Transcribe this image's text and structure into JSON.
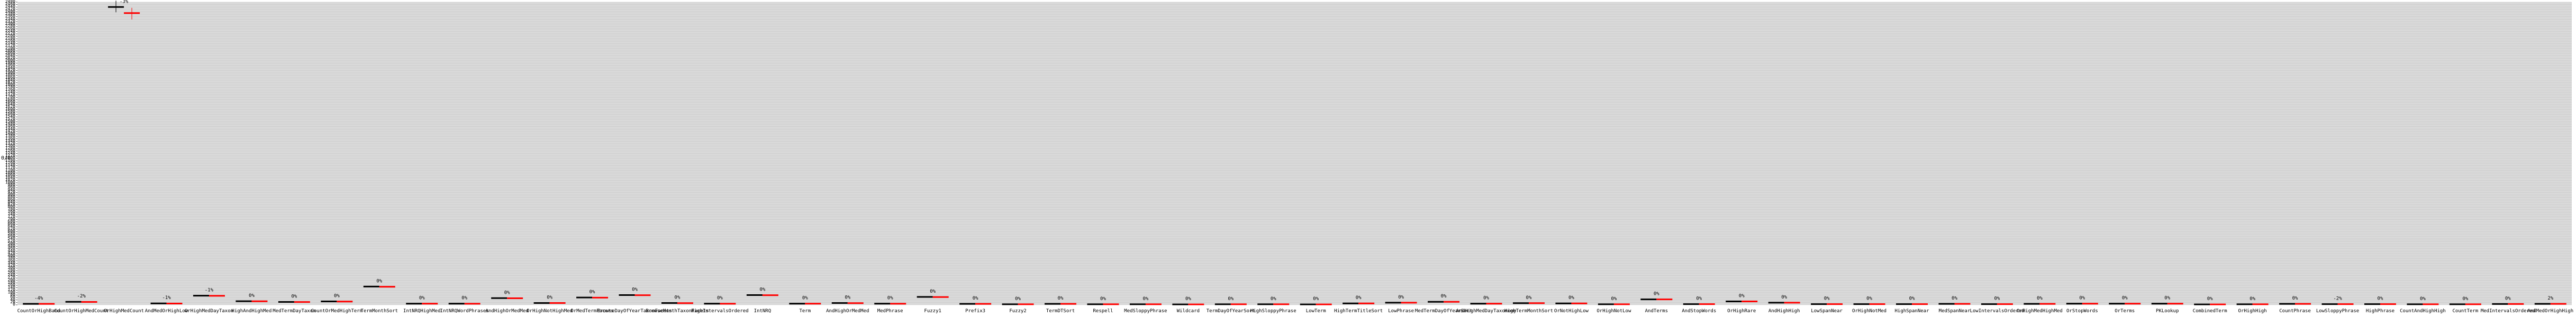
{
  "chart_data": {
    "type": "scatter",
    "ylabel": "0/6",
    "ylim": [
      0,
      2480
    ],
    "grid": true,
    "categories": [
      "CountOrHighBand",
      "CountOrHighMedCount",
      "OrHighMedCount",
      "AndMedOrHighLow",
      "OrHighMedDayTaxon",
      "HighAndHighMed",
      "MedTermDayTaxon",
      "CountOrMedHighTerm",
      "TermMonthSort",
      "IntNRQHighMed",
      "IntNRQWordPhrases",
      "AndHighOrMedMed",
      "OrHighNotHighMed",
      "OrMedTermFacets",
      "BrowseDayOfYearTaxonFacets",
      "BrowseMonthTaxonFacets",
      "HighIntervalsOrdered",
      "IntNRQ",
      "Term",
      "AndHighOrMedMed",
      "MedPhrase",
      "Fuzzy1",
      "Prefix3",
      "Fuzzy2",
      "TermDTSort",
      "Respell",
      "MedSloppyPhrase",
      "Wildcard",
      "TermDayOfYearSort",
      "HighSloppyPhrase",
      "LowTerm",
      "HighTermTitleSort",
      "LowPhrase",
      "MedTermDayOfYearSort",
      "AndHighMedDayTaxonomy",
      "HighTermMonthSort",
      "OrNotHighLow",
      "OrHighNotLow",
      "AndTerms",
      "AndStopWords",
      "OrHighRare",
      "AndHighHigh",
      "LowSpanNear",
      "OrHighNotMed",
      "HighSpanNear",
      "MedSpanNear",
      "LowIntervalsOrdered",
      "OrHighMedHighMed",
      "OrStopWords",
      "OrTerms",
      "PKLookup",
      "CombinedTerm",
      "OrHighHigh",
      "CountPhrase",
      "LowSloppyPhrase",
      "HighPhrase",
      "CountAndHighHigh",
      "CountTerm",
      "MedIntervalsOrdered",
      "AndMedOrHighHigh"
    ],
    "series": [
      {
        "color": "#000000",
        "values": [
          8,
          25,
          2440,
          12,
          75,
          30,
          24,
          28,
          150,
          10,
          10,
          55,
          15,
          60,
          80,
          15,
          10,
          80,
          10,
          15,
          10,
          65,
          8,
          5,
          8,
          5,
          5,
          4,
          5,
          5,
          4,
          12,
          18,
          25,
          10,
          14,
          12,
          5,
          45,
          6,
          28,
          18,
          6,
          6,
          6,
          8,
          6,
          8,
          10,
          10,
          10,
          4,
          5,
          8,
          6,
          6,
          5,
          5,
          7,
          8
        ]
      },
      {
        "color": "#ff0000",
        "values": [
          8,
          24,
          2390,
          11,
          74,
          29,
          23,
          27,
          148,
          10,
          9,
          54,
          15,
          59,
          79,
          14,
          9,
          79,
          10,
          14,
          9,
          64,
          8,
          5,
          8,
          5,
          5,
          4,
          5,
          5,
          4,
          12,
          18,
          25,
          10,
          14,
          12,
          5,
          45,
          6,
          28,
          18,
          6,
          6,
          6,
          8,
          6,
          8,
          10,
          10,
          10,
          4,
          5,
          8,
          6,
          6,
          5,
          5,
          7,
          8
        ]
      }
    ],
    "annotations": [
      "-4%",
      "-2%",
      "-3%",
      "-1%",
      "-1%",
      "0%",
      "0%",
      "0%",
      "0%",
      "0%",
      "0%",
      "0%",
      "0%",
      "0%",
      "0%",
      "0%",
      "0%",
      "0%",
      "0%",
      "0%",
      "0%",
      "0%",
      "0%",
      "0%",
      "0%",
      "0%",
      "0%",
      "0%",
      "0%",
      "0%",
      "0%",
      "0%",
      "0%",
      "0%",
      "0%",
      "0%",
      "0%",
      "0%",
      "0%",
      "0%",
      "0%",
      "0%",
      "0%",
      "0%",
      "0%",
      "0%",
      "0%",
      "0%",
      "0%",
      "0%",
      "0%",
      "0%",
      "0%",
      "0%",
      "-2%",
      "0%",
      "0%",
      "0%",
      "0%",
      "2%"
    ]
  }
}
